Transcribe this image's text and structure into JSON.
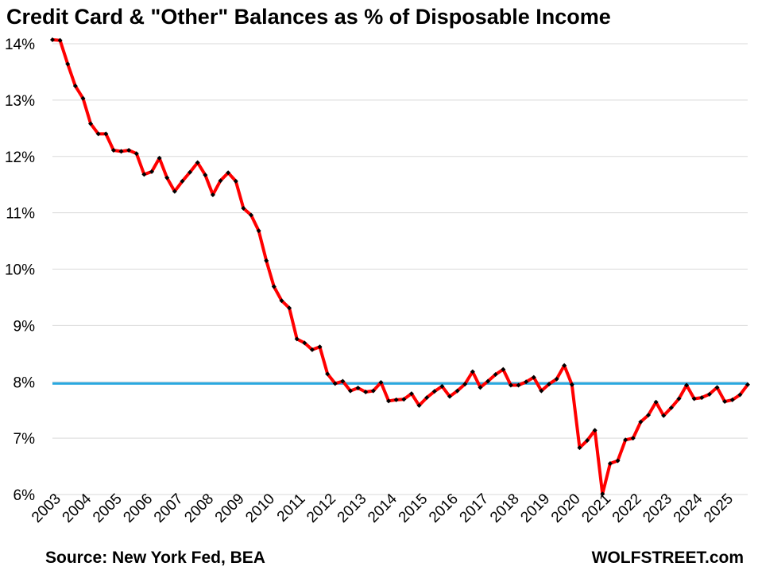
{
  "chart_data": {
    "type": "line",
    "title": "Credit Card & \"Other\" Balances as % of Disposable Income",
    "source": "Source: New York Fed, BEA",
    "brand": "WOLFSTREET.com",
    "ylim": [
      6,
      14
    ],
    "y_ticks": [
      "6%",
      "7%",
      "8%",
      "9%",
      "10%",
      "11%",
      "12%",
      "13%",
      "14%"
    ],
    "x_ticks": [
      "2003",
      "2004",
      "2005",
      "2006",
      "2007",
      "2008",
      "2009",
      "2010",
      "2011",
      "2012",
      "2013",
      "2014",
      "2015",
      "2016",
      "2017",
      "2018",
      "2019",
      "2020",
      "2021",
      "2022",
      "2023",
      "2024",
      "2025"
    ],
    "x_start": "2003 Q1",
    "grid": true,
    "reference_line": {
      "value": 7.97,
      "color": "#29a8e0"
    },
    "line_color": "#ff0000",
    "marker_color": "#000000",
    "series": [
      {
        "values": [
          14.07,
          14.06,
          13.64,
          13.25,
          13.03,
          12.58,
          12.4,
          12.4,
          12.11,
          12.09,
          12.11,
          12.05,
          11.68,
          11.73,
          11.97,
          11.62,
          11.38,
          11.56,
          11.72,
          11.89,
          11.67,
          11.32,
          11.57,
          11.71,
          11.56,
          11.08,
          10.96,
          10.68,
          10.15,
          9.69,
          9.44,
          9.31,
          8.76,
          8.69,
          8.57,
          8.62,
          8.14,
          7.97,
          8.01,
          7.84,
          7.89,
          7.82,
          7.84,
          7.99,
          7.66,
          7.68,
          7.69,
          7.79,
          7.58,
          7.72,
          7.83,
          7.92,
          7.74,
          7.84,
          7.96,
          8.18,
          7.9,
          8.01,
          8.13,
          8.22,
          7.94,
          7.94,
          8.0,
          8.08,
          7.84,
          7.96,
          8.05,
          8.29,
          7.95,
          6.83,
          6.96,
          7.14,
          6.01,
          6.55,
          6.6,
          6.97,
          7.0,
          7.29,
          7.41,
          7.64,
          7.4,
          7.54,
          7.7,
          7.94,
          7.7,
          7.72,
          7.78,
          7.9,
          7.65,
          7.68,
          7.77,
          7.95
        ]
      }
    ]
  }
}
